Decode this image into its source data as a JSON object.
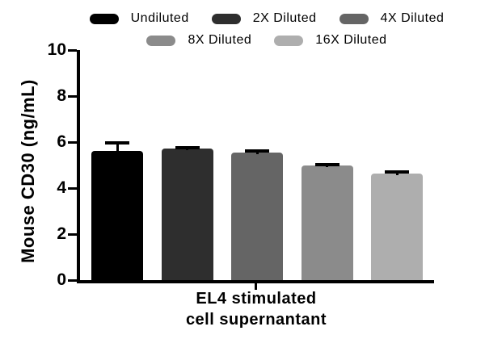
{
  "chart_data": {
    "type": "bar",
    "title": "",
    "ylabel": "Mouse CD30 (ng/mL)",
    "xlabel_lines": [
      "EL4 stimulated",
      "cell supernantant"
    ],
    "categories": [
      "EL4 stimulated cell supernantant"
    ],
    "ylim": [
      0,
      10
    ],
    "yticks": [
      0,
      2,
      4,
      6,
      8,
      10
    ],
    "grid": false,
    "legend_position": "top",
    "legend_rows": [
      3,
      2
    ],
    "series": [
      {
        "name": "Undiluted",
        "value": 5.6,
        "error": 0.35,
        "color": "#000000"
      },
      {
        "name": "2X Diluted",
        "value": 5.72,
        "error": 0.04,
        "color": "#2e2e2e"
      },
      {
        "name": "4X Diluted",
        "value": 5.55,
        "error": 0.05,
        "color": "#656565"
      },
      {
        "name": "8X Diluted",
        "value": 4.97,
        "error": 0.04,
        "color": "#8b8b8b"
      },
      {
        "name": "16X Diluted",
        "value": 4.62,
        "error": 0.09,
        "color": "#aeaeae"
      }
    ],
    "error_bar_color": "#000000",
    "axis_color": "#000000",
    "background_color": "#ffffff"
  }
}
